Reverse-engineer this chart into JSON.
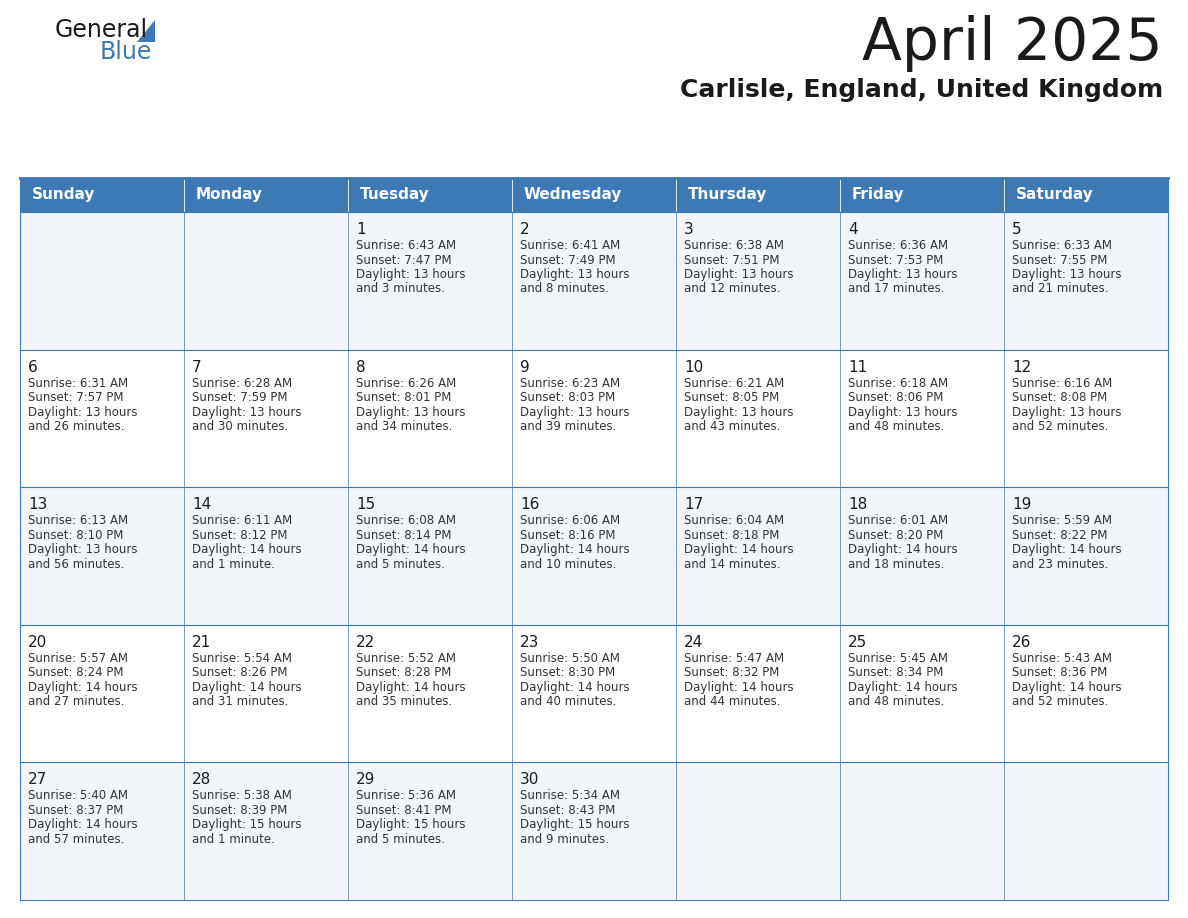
{
  "title": "April 2025",
  "subtitle": "Carlisle, England, United Kingdom",
  "header_bg": "#3d7ab5",
  "header_text": "#ffffff",
  "row_bg_light": "#f2f6fa",
  "row_bg_white": "#ffffff",
  "border_color": "#3d7ab5",
  "text_color": "#333333",
  "days_of_week": [
    "Sunday",
    "Monday",
    "Tuesday",
    "Wednesday",
    "Thursday",
    "Friday",
    "Saturday"
  ],
  "weeks": [
    [
      {
        "day": "",
        "info": ""
      },
      {
        "day": "",
        "info": ""
      },
      {
        "day": "1",
        "info": "Sunrise: 6:43 AM\nSunset: 7:47 PM\nDaylight: 13 hours\nand 3 minutes."
      },
      {
        "day": "2",
        "info": "Sunrise: 6:41 AM\nSunset: 7:49 PM\nDaylight: 13 hours\nand 8 minutes."
      },
      {
        "day": "3",
        "info": "Sunrise: 6:38 AM\nSunset: 7:51 PM\nDaylight: 13 hours\nand 12 minutes."
      },
      {
        "day": "4",
        "info": "Sunrise: 6:36 AM\nSunset: 7:53 PM\nDaylight: 13 hours\nand 17 minutes."
      },
      {
        "day": "5",
        "info": "Sunrise: 6:33 AM\nSunset: 7:55 PM\nDaylight: 13 hours\nand 21 minutes."
      }
    ],
    [
      {
        "day": "6",
        "info": "Sunrise: 6:31 AM\nSunset: 7:57 PM\nDaylight: 13 hours\nand 26 minutes."
      },
      {
        "day": "7",
        "info": "Sunrise: 6:28 AM\nSunset: 7:59 PM\nDaylight: 13 hours\nand 30 minutes."
      },
      {
        "day": "8",
        "info": "Sunrise: 6:26 AM\nSunset: 8:01 PM\nDaylight: 13 hours\nand 34 minutes."
      },
      {
        "day": "9",
        "info": "Sunrise: 6:23 AM\nSunset: 8:03 PM\nDaylight: 13 hours\nand 39 minutes."
      },
      {
        "day": "10",
        "info": "Sunrise: 6:21 AM\nSunset: 8:05 PM\nDaylight: 13 hours\nand 43 minutes."
      },
      {
        "day": "11",
        "info": "Sunrise: 6:18 AM\nSunset: 8:06 PM\nDaylight: 13 hours\nand 48 minutes."
      },
      {
        "day": "12",
        "info": "Sunrise: 6:16 AM\nSunset: 8:08 PM\nDaylight: 13 hours\nand 52 minutes."
      }
    ],
    [
      {
        "day": "13",
        "info": "Sunrise: 6:13 AM\nSunset: 8:10 PM\nDaylight: 13 hours\nand 56 minutes."
      },
      {
        "day": "14",
        "info": "Sunrise: 6:11 AM\nSunset: 8:12 PM\nDaylight: 14 hours\nand 1 minute."
      },
      {
        "day": "15",
        "info": "Sunrise: 6:08 AM\nSunset: 8:14 PM\nDaylight: 14 hours\nand 5 minutes."
      },
      {
        "day": "16",
        "info": "Sunrise: 6:06 AM\nSunset: 8:16 PM\nDaylight: 14 hours\nand 10 minutes."
      },
      {
        "day": "17",
        "info": "Sunrise: 6:04 AM\nSunset: 8:18 PM\nDaylight: 14 hours\nand 14 minutes."
      },
      {
        "day": "18",
        "info": "Sunrise: 6:01 AM\nSunset: 8:20 PM\nDaylight: 14 hours\nand 18 minutes."
      },
      {
        "day": "19",
        "info": "Sunrise: 5:59 AM\nSunset: 8:22 PM\nDaylight: 14 hours\nand 23 minutes."
      }
    ],
    [
      {
        "day": "20",
        "info": "Sunrise: 5:57 AM\nSunset: 8:24 PM\nDaylight: 14 hours\nand 27 minutes."
      },
      {
        "day": "21",
        "info": "Sunrise: 5:54 AM\nSunset: 8:26 PM\nDaylight: 14 hours\nand 31 minutes."
      },
      {
        "day": "22",
        "info": "Sunrise: 5:52 AM\nSunset: 8:28 PM\nDaylight: 14 hours\nand 35 minutes."
      },
      {
        "day": "23",
        "info": "Sunrise: 5:50 AM\nSunset: 8:30 PM\nDaylight: 14 hours\nand 40 minutes."
      },
      {
        "day": "24",
        "info": "Sunrise: 5:47 AM\nSunset: 8:32 PM\nDaylight: 14 hours\nand 44 minutes."
      },
      {
        "day": "25",
        "info": "Sunrise: 5:45 AM\nSunset: 8:34 PM\nDaylight: 14 hours\nand 48 minutes."
      },
      {
        "day": "26",
        "info": "Sunrise: 5:43 AM\nSunset: 8:36 PM\nDaylight: 14 hours\nand 52 minutes."
      }
    ],
    [
      {
        "day": "27",
        "info": "Sunrise: 5:40 AM\nSunset: 8:37 PM\nDaylight: 14 hours\nand 57 minutes."
      },
      {
        "day": "28",
        "info": "Sunrise: 5:38 AM\nSunset: 8:39 PM\nDaylight: 15 hours\nand 1 minute."
      },
      {
        "day": "29",
        "info": "Sunrise: 5:36 AM\nSunset: 8:41 PM\nDaylight: 15 hours\nand 5 minutes."
      },
      {
        "day": "30",
        "info": "Sunrise: 5:34 AM\nSunset: 8:43 PM\nDaylight: 15 hours\nand 9 minutes."
      },
      {
        "day": "",
        "info": ""
      },
      {
        "day": "",
        "info": ""
      },
      {
        "day": "",
        "info": ""
      }
    ]
  ],
  "logo_general_color": "#1a1a1a",
  "logo_blue_color": "#3d7ab5",
  "title_fontsize": 42,
  "subtitle_fontsize": 18,
  "dayname_fontsize": 11,
  "day_num_fontsize": 11,
  "info_fontsize": 8.5
}
